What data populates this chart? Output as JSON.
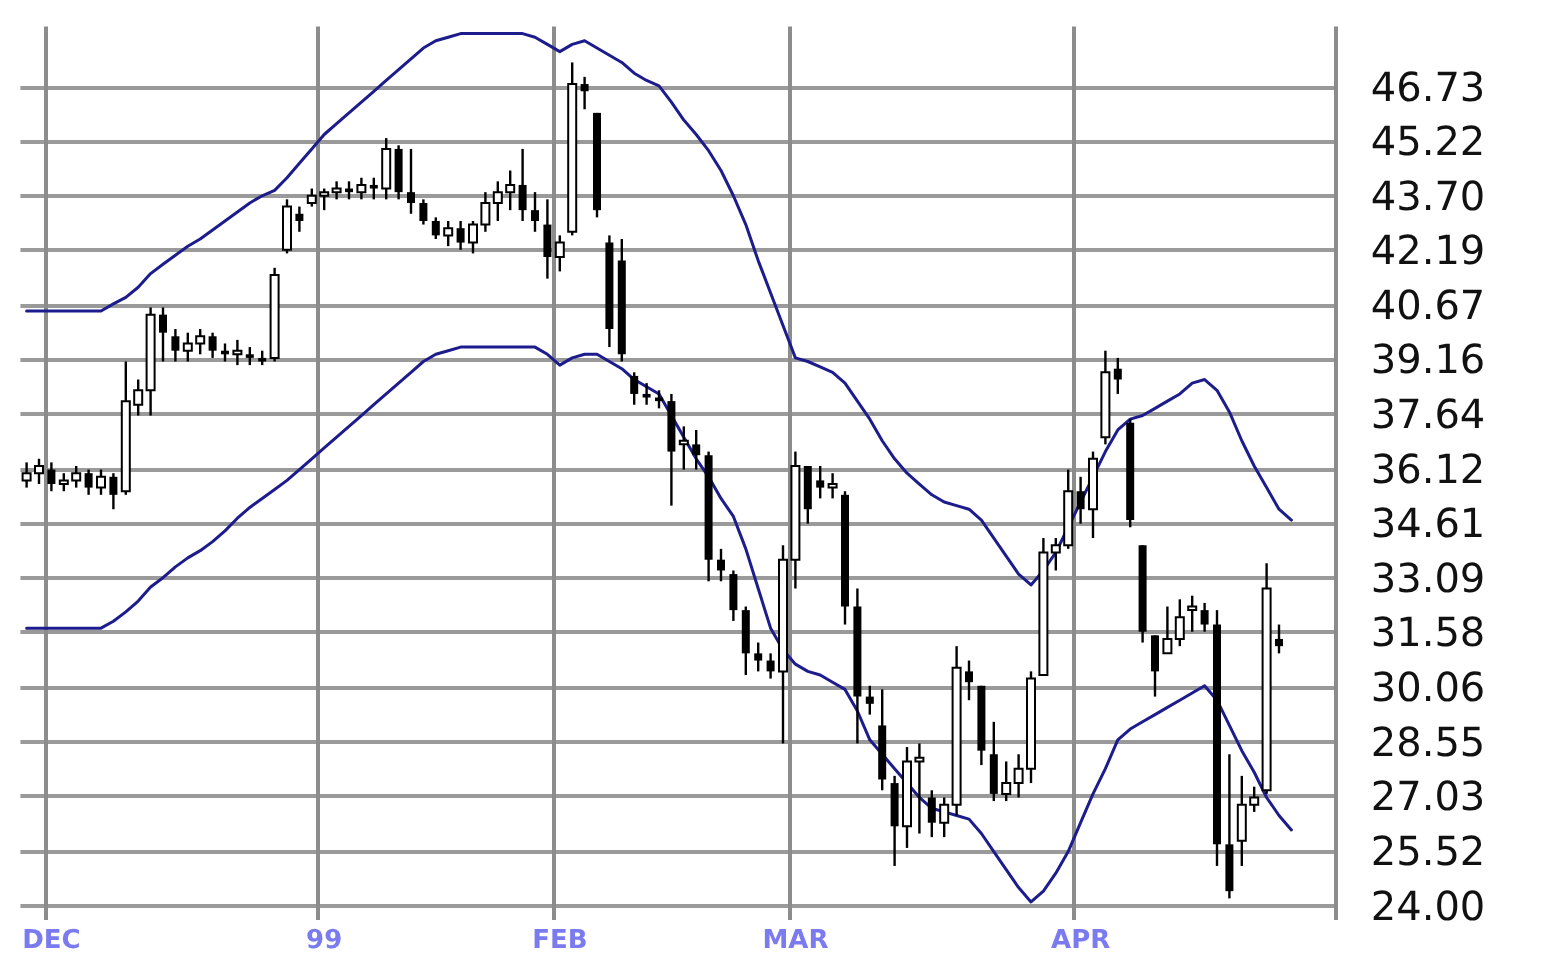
{
  "chart_data": {
    "type": "candlestick",
    "color": "#000000",
    "categories": [
      null,
      null,
      "DEC",
      null,
      null,
      null,
      null,
      null,
      null,
      null,
      null,
      null,
      null,
      null,
      null,
      null,
      null,
      null,
      null,
      null,
      null,
      null,
      null,
      null,
      "99",
      null,
      null,
      null,
      null,
      null,
      null,
      null,
      null,
      null,
      null,
      null,
      null,
      null,
      null,
      null,
      null,
      null,
      null,
      "FEB",
      null,
      null,
      null,
      null,
      null,
      null,
      null,
      null,
      null,
      null,
      null,
      null,
      null,
      null,
      null,
      null,
      null,
      null,
      "MAR",
      null,
      null,
      null,
      null,
      null,
      null,
      null,
      null,
      null,
      null,
      null,
      null,
      null,
      null,
      null,
      null,
      null,
      null,
      null,
      null,
      null,
      null,
      "APR",
      null,
      null,
      null,
      null,
      null,
      null,
      null,
      null,
      null,
      null,
      null,
      null,
      null,
      null,
      null,
      null,
      null,
      null,
      null,
      null
    ],
    "ohlc": [
      [
        35.8,
        36.3,
        35.6,
        36.0
      ],
      [
        36.0,
        36.4,
        35.7,
        36.2
      ],
      [
        36.1,
        36.3,
        35.5,
        35.7
      ],
      [
        35.7,
        36.0,
        35.5,
        35.8
      ],
      [
        35.8,
        36.2,
        35.6,
        36.0
      ],
      [
        36.0,
        36.1,
        35.4,
        35.6
      ],
      [
        35.6,
        36.1,
        35.4,
        35.9
      ],
      [
        35.9,
        36.0,
        35.0,
        35.4
      ],
      [
        35.5,
        39.1,
        35.4,
        38.0
      ],
      [
        37.9,
        38.6,
        37.6,
        38.3
      ],
      [
        38.3,
        40.6,
        37.6,
        40.4
      ],
      [
        40.4,
        40.6,
        39.1,
        39.9
      ],
      [
        39.8,
        40.0,
        39.1,
        39.4
      ],
      [
        39.4,
        39.9,
        39.1,
        39.6
      ],
      [
        39.6,
        40.0,
        39.3,
        39.8
      ],
      [
        39.8,
        39.9,
        39.2,
        39.4
      ],
      [
        39.4,
        39.6,
        39.1,
        39.3
      ],
      [
        39.3,
        39.7,
        39.0,
        39.4
      ],
      [
        39.3,
        39.5,
        39.0,
        39.2
      ],
      [
        39.2,
        39.4,
        39.0,
        39.1
      ],
      [
        39.2,
        41.7,
        39.1,
        41.5
      ],
      [
        42.2,
        43.6,
        42.1,
        43.4
      ],
      [
        43.2,
        43.4,
        42.7,
        43.0
      ],
      [
        43.5,
        43.9,
        43.4,
        43.7
      ],
      [
        43.7,
        43.9,
        43.3,
        43.8
      ],
      [
        43.8,
        44.1,
        43.6,
        43.9
      ],
      [
        43.9,
        44.1,
        43.6,
        43.8
      ],
      [
        43.8,
        44.2,
        43.6,
        44.0
      ],
      [
        44.0,
        44.2,
        43.6,
        43.9
      ],
      [
        43.9,
        45.3,
        43.6,
        45.0
      ],
      [
        45.0,
        45.1,
        43.6,
        43.8
      ],
      [
        43.8,
        45.0,
        43.2,
        43.5
      ],
      [
        43.5,
        43.6,
        42.9,
        43.0
      ],
      [
        43.0,
        43.1,
        42.5,
        42.6
      ],
      [
        42.6,
        43.0,
        42.3,
        42.8
      ],
      [
        42.8,
        43.0,
        42.2,
        42.4
      ],
      [
        42.4,
        43.0,
        42.1,
        42.9
      ],
      [
        42.9,
        43.8,
        42.7,
        43.5
      ],
      [
        43.5,
        44.1,
        43.0,
        43.8
      ],
      [
        43.8,
        44.4,
        43.3,
        44.0
      ],
      [
        44.0,
        45.0,
        43.0,
        43.3
      ],
      [
        43.3,
        43.8,
        42.7,
        43.0
      ],
      [
        42.9,
        43.6,
        41.4,
        42.0
      ],
      [
        42.0,
        42.6,
        41.6,
        42.4
      ],
      [
        42.7,
        47.4,
        42.6,
        46.8
      ],
      [
        46.8,
        47.0,
        46.1,
        46.6
      ],
      [
        46.0,
        46.0,
        43.1,
        43.3
      ],
      [
        42.4,
        42.6,
        39.5,
        40.0
      ],
      [
        41.9,
        42.5,
        39.1,
        39.3
      ],
      [
        38.7,
        38.8,
        37.9,
        38.2
      ],
      [
        38.2,
        38.5,
        37.9,
        38.1
      ],
      [
        38.1,
        38.3,
        37.8,
        38.0
      ],
      [
        38.0,
        38.2,
        35.1,
        36.6
      ],
      [
        36.8,
        37.3,
        36.1,
        36.9
      ],
      [
        36.8,
        37.2,
        36.1,
        36.5
      ],
      [
        36.5,
        36.6,
        33.0,
        33.6
      ],
      [
        33.6,
        33.9,
        33.0,
        33.3
      ],
      [
        33.2,
        33.3,
        31.9,
        32.2
      ],
      [
        32.2,
        32.3,
        30.4,
        31.0
      ],
      [
        31.0,
        31.3,
        30.5,
        30.8
      ],
      [
        30.8,
        31.0,
        30.3,
        30.5
      ],
      [
        30.5,
        34.0,
        28.5,
        33.6
      ],
      [
        33.6,
        36.6,
        32.8,
        36.2
      ],
      [
        36.2,
        36.2,
        34.6,
        35.0
      ],
      [
        35.8,
        36.2,
        35.3,
        35.6
      ],
      [
        35.6,
        36.0,
        35.3,
        35.7
      ],
      [
        35.4,
        35.5,
        31.8,
        32.3
      ],
      [
        32.3,
        32.8,
        28.5,
        29.8
      ],
      [
        29.8,
        30.1,
        29.3,
        29.6
      ],
      [
        29.0,
        30.0,
        27.2,
        27.5
      ],
      [
        27.4,
        27.6,
        25.1,
        26.2
      ],
      [
        26.2,
        28.4,
        25.6,
        28.0
      ],
      [
        28.0,
        28.5,
        26.0,
        28.1
      ],
      [
        27.0,
        27.2,
        25.9,
        26.3
      ],
      [
        26.3,
        27.0,
        25.9,
        26.8
      ],
      [
        26.8,
        31.2,
        26.5,
        30.6
      ],
      [
        30.5,
        30.8,
        29.7,
        30.2
      ],
      [
        30.1,
        30.1,
        27.9,
        28.3
      ],
      [
        28.2,
        29.1,
        26.9,
        27.1
      ],
      [
        27.1,
        28.0,
        26.9,
        27.4
      ],
      [
        27.4,
        28.2,
        27.0,
        27.8
      ],
      [
        27.8,
        30.5,
        27.4,
        30.3
      ],
      [
        30.4,
        34.2,
        30.4,
        33.8
      ],
      [
        33.8,
        34.2,
        33.3,
        34.0
      ],
      [
        34.0,
        36.1,
        33.9,
        35.5
      ],
      [
        35.5,
        35.9,
        34.6,
        35.0
      ],
      [
        35.0,
        36.6,
        34.2,
        36.4
      ],
      [
        37.0,
        39.4,
        36.8,
        38.8
      ],
      [
        38.9,
        39.2,
        38.2,
        38.6
      ],
      [
        37.4,
        37.5,
        34.5,
        34.7
      ],
      [
        34.0,
        34.0,
        31.3,
        31.6
      ],
      [
        31.5,
        31.5,
        29.8,
        30.5
      ],
      [
        31.0,
        32.3,
        31.0,
        31.4
      ],
      [
        31.4,
        32.5,
        31.2,
        32.0
      ],
      [
        32.2,
        32.6,
        31.6,
        32.3
      ],
      [
        32.2,
        32.4,
        31.6,
        31.8
      ],
      [
        31.8,
        32.2,
        25.1,
        25.7
      ],
      [
        25.7,
        28.2,
        24.2,
        24.4
      ],
      [
        25.8,
        27.6,
        25.1,
        26.8
      ],
      [
        26.8,
        27.3,
        26.6,
        27.0
      ],
      [
        27.2,
        33.5,
        27.1,
        32.8
      ],
      [
        31.4,
        31.8,
        31.0,
        31.2
      ],
      null,
      null,
      null,
      null
    ],
    "series": [
      {
        "type": "line",
        "color": "#1c1c8c",
        "values": [
          31.7,
          31.7,
          31.7,
          31.7,
          31.7,
          31.7,
          31.7,
          31.89,
          32.15,
          32.45,
          32.84,
          33.1,
          33.4,
          33.65,
          33.85,
          34.1,
          34.4,
          34.75,
          35.05,
          35.3,
          35.55,
          35.8,
          36.1,
          36.4,
          36.7,
          37.0,
          37.3,
          37.6,
          37.9,
          38.2,
          38.5,
          38.8,
          39.1,
          39.3,
          39.4,
          39.5,
          39.5,
          39.5,
          39.5,
          39.5,
          39.5,
          39.5,
          39.3,
          39.0,
          39.2,
          39.3,
          39.3,
          39.1,
          38.9,
          38.6,
          38.4,
          38.2,
          37.6,
          37.0,
          36.4,
          35.9,
          35.3,
          34.8,
          33.9,
          32.8,
          31.7,
          31.1,
          30.7,
          30.5,
          30.4,
          30.2,
          30.0,
          29.4,
          28.6,
          28.2,
          27.8,
          27.4,
          27.0,
          26.7,
          26.6,
          26.5,
          26.4,
          26.0,
          25.5,
          25.0,
          24.5,
          24.1,
          24.4,
          24.9,
          25.5,
          26.3,
          27.1,
          27.8,
          28.6,
          28.9,
          29.1,
          29.3,
          29.5,
          29.7,
          29.9,
          30.1,
          29.7,
          29.0,
          28.3,
          27.7,
          27.0,
          26.5,
          26.1,
          null,
          null,
          null
        ]
      },
      {
        "type": "line",
        "color": "#1c1c8c",
        "values": [
          40.5,
          40.5,
          40.5,
          40.5,
          40.5,
          40.5,
          40.5,
          40.7,
          40.88,
          41.16,
          41.54,
          41.8,
          42.05,
          42.3,
          42.5,
          42.75,
          43.0,
          43.25,
          43.5,
          43.7,
          43.85,
          44.2,
          44.6,
          45.0,
          45.4,
          45.7,
          46.0,
          46.3,
          46.6,
          46.9,
          47.2,
          47.5,
          47.8,
          48.0,
          48.1,
          48.2,
          48.2,
          48.2,
          48.2,
          48.2,
          48.2,
          48.1,
          47.9,
          47.7,
          47.9,
          48.0,
          47.8,
          47.6,
          47.4,
          47.1,
          46.9,
          46.75,
          46.3,
          45.8,
          45.4,
          44.95,
          44.4,
          43.7,
          42.9,
          41.9,
          41.0,
          40.1,
          39.2,
          39.1,
          38.95,
          38.8,
          38.5,
          38.0,
          37.5,
          36.9,
          36.4,
          36.0,
          35.7,
          35.4,
          35.2,
          35.1,
          35.0,
          34.7,
          34.2,
          33.7,
          33.2,
          32.9,
          33.3,
          33.8,
          34.5,
          35.2,
          35.9,
          36.6,
          37.2,
          37.5,
          37.6,
          37.8,
          38.0,
          38.2,
          38.5,
          38.6,
          38.3,
          37.7,
          36.9,
          36.2,
          35.6,
          35.0,
          34.7,
          null,
          null,
          null
        ]
      }
    ],
    "ylim": [
      23.6,
      48.4
    ],
    "yticks": [
      {
        "value": 24,
        "label": "24.00"
      },
      25.52,
      27.03,
      28.55,
      30.06,
      31.58,
      33.09,
      34.61,
      36.12,
      37.64,
      39.16,
      40.67,
      42.19,
      {
        "value": 43.7,
        "label": "43.70"
      },
      45.22,
      46.73
    ],
    "grid": true,
    "marker": "none",
    "line_style": "solid"
  }
}
